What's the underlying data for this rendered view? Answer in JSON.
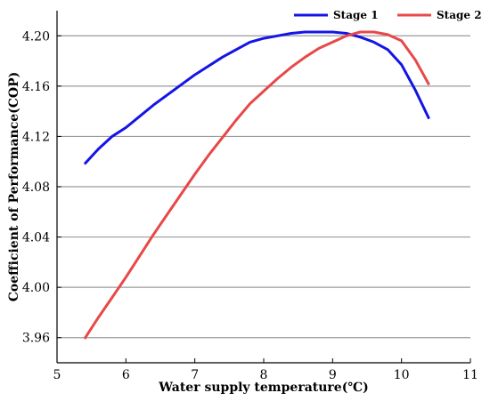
{
  "chart_data": {
    "type": "line",
    "xlabel": "Water supply temperature(℃)",
    "ylabel": "Coefficient of Performance(COP)",
    "xlim": [
      5,
      11
    ],
    "ylim": [
      3.94,
      4.22
    ],
    "x_ticks": [
      "5",
      "6",
      "7",
      "8",
      "9",
      "10",
      "11"
    ],
    "y_ticks": [
      "3.96",
      "4.00",
      "4.04",
      "4.08",
      "4.12",
      "4.16",
      "4.20"
    ],
    "grid": "horizontal",
    "legend_position": "top-right",
    "series": [
      {
        "name": "Stage 1",
        "color": "#1414e6",
        "points": [
          [
            5.4,
            4.098
          ],
          [
            5.6,
            4.11
          ],
          [
            5.8,
            4.12
          ],
          [
            6.0,
            4.127
          ],
          [
            6.2,
            4.136
          ],
          [
            6.4,
            4.145
          ],
          [
            6.6,
            4.153
          ],
          [
            6.8,
            4.161
          ],
          [
            7.0,
            4.169
          ],
          [
            7.2,
            4.176
          ],
          [
            7.4,
            4.183
          ],
          [
            7.6,
            4.189
          ],
          [
            7.8,
            4.195
          ],
          [
            8.0,
            4.198
          ],
          [
            8.2,
            4.2
          ],
          [
            8.4,
            4.202
          ],
          [
            8.6,
            4.203
          ],
          [
            8.8,
            4.203
          ],
          [
            9.0,
            4.203
          ],
          [
            9.2,
            4.202
          ],
          [
            9.4,
            4.199
          ],
          [
            9.6,
            4.195
          ],
          [
            9.8,
            4.189
          ],
          [
            10.0,
            4.177
          ],
          [
            10.2,
            4.157
          ],
          [
            10.4,
            4.134
          ]
        ]
      },
      {
        "name": "Stage 2",
        "color": "#e84848",
        "points": [
          [
            5.4,
            3.959
          ],
          [
            5.6,
            3.976
          ],
          [
            5.8,
            3.992
          ],
          [
            6.0,
            4.008
          ],
          [
            6.2,
            4.025
          ],
          [
            6.4,
            4.042
          ],
          [
            6.6,
            4.058
          ],
          [
            6.8,
            4.074
          ],
          [
            7.0,
            4.09
          ],
          [
            7.2,
            4.105
          ],
          [
            7.4,
            4.119
          ],
          [
            7.6,
            4.133
          ],
          [
            7.8,
            4.146
          ],
          [
            8.0,
            4.156
          ],
          [
            8.2,
            4.166
          ],
          [
            8.4,
            4.175
          ],
          [
            8.6,
            4.183
          ],
          [
            8.8,
            4.19
          ],
          [
            9.0,
            4.195
          ],
          [
            9.2,
            4.2
          ],
          [
            9.4,
            4.203
          ],
          [
            9.6,
            4.203
          ],
          [
            9.8,
            4.201
          ],
          [
            10.0,
            4.196
          ],
          [
            10.2,
            4.181
          ],
          [
            10.4,
            4.161
          ]
        ]
      }
    ]
  }
}
